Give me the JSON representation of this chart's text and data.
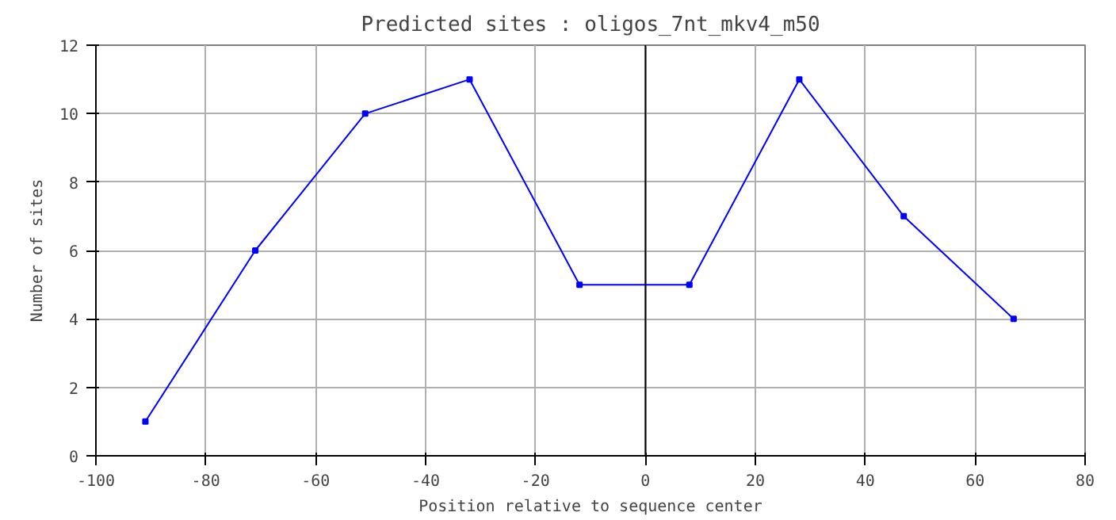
{
  "chart_data": {
    "type": "line",
    "title": "Predicted sites : oligos_7nt_mkv4_m50",
    "xlabel": "Position relative to sequence center",
    "ylabel": "Number of sites",
    "x": [
      -91,
      -71,
      -51,
      -32,
      -12,
      8,
      28,
      47,
      67
    ],
    "series": [
      {
        "color": "#0000ff",
        "values": [
          1,
          6,
          10,
          11,
          5,
          5,
          11,
          7,
          4
        ]
      }
    ],
    "xlim": [
      -100,
      80
    ],
    "xticks": [
      -100,
      -80,
      -60,
      -40,
      -20,
      0,
      20,
      40,
      60,
      80
    ],
    "ylim": [
      0,
      12
    ],
    "yticks": [
      0,
      2,
      4,
      6,
      8,
      10,
      12
    ],
    "grid": true,
    "marker": "square",
    "line_style": "solid",
    "ref_lines": [
      {
        "axis": "x",
        "value": 0,
        "color": "#000000"
      }
    ]
  }
}
